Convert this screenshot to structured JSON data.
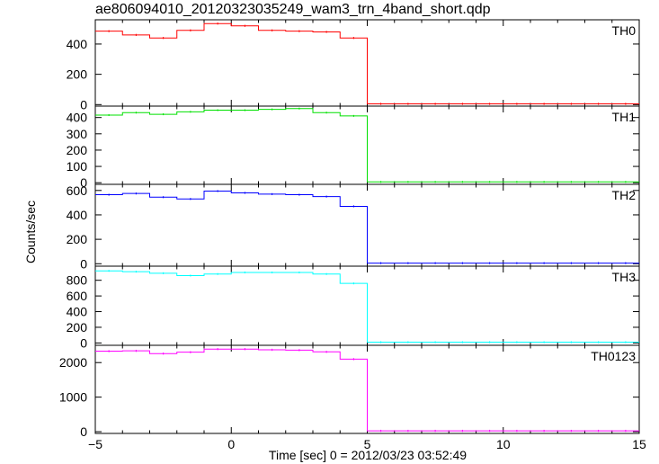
{
  "chart_data": {
    "type": "line",
    "title": "ae806094010_20120323035249_wam3_trn_4band_short.qdp",
    "xlabel": "Time [sec] 0 = 2012/03/23 03:52:49",
    "ylabel": "Counts/sec",
    "xlim": [
      -5,
      15
    ],
    "x_ticks": [
      "−5",
      "0",
      "5",
      "10",
      "15"
    ],
    "x_tick_values": [
      -5,
      0,
      5,
      10,
      15
    ],
    "panels": [
      {
        "name": "TH0",
        "color": "#ff0000",
        "ylim": [
          -10,
          560
        ],
        "y_ticks": [
          0,
          200,
          400
        ],
        "x": [
          -4.5,
          -3.5,
          -2.5,
          -1.5,
          -0.5,
          0.5,
          1.5,
          2.5,
          3.5,
          4.5,
          5.5,
          6.5,
          7.5,
          8.5,
          9.5,
          10.5,
          11.5,
          12.5,
          13.5,
          14.5
        ],
        "values": [
          485,
          460,
          440,
          490,
          535,
          520,
          490,
          485,
          480,
          440,
          5,
          5,
          5,
          5,
          5,
          5,
          5,
          5,
          5,
          5
        ]
      },
      {
        "name": "TH1",
        "color": "#00e000",
        "ylim": [
          -10,
          470
        ],
        "y_ticks": [
          0,
          100,
          200,
          300,
          400
        ],
        "x": [
          -4.5,
          -3.5,
          -2.5,
          -1.5,
          -0.5,
          0.5,
          1.5,
          2.5,
          3.5,
          4.5,
          5.5,
          6.5,
          7.5,
          8.5,
          9.5,
          10.5,
          11.5,
          12.5,
          13.5,
          14.5
        ],
        "values": [
          415,
          430,
          420,
          435,
          445,
          445,
          450,
          455,
          430,
          410,
          5,
          5,
          5,
          5,
          5,
          5,
          5,
          5,
          5,
          5
        ]
      },
      {
        "name": "TH2",
        "color": "#0000ff",
        "ylim": [
          -20,
          650
        ],
        "y_ticks": [
          0,
          200,
          400,
          600
        ],
        "x": [
          -4.5,
          -3.5,
          -2.5,
          -1.5,
          -0.5,
          0.5,
          1.5,
          2.5,
          3.5,
          4.5,
          5.5,
          6.5,
          7.5,
          8.5,
          9.5,
          10.5,
          11.5,
          12.5,
          13.5,
          14.5
        ],
        "values": [
          565,
          575,
          545,
          530,
          595,
          580,
          570,
          565,
          550,
          470,
          5,
          5,
          5,
          5,
          5,
          5,
          5,
          5,
          5,
          5
        ]
      },
      {
        "name": "TH3",
        "color": "#00ffff",
        "ylim": [
          -30,
          980
        ],
        "y_ticks": [
          0,
          200,
          400,
          600,
          800
        ],
        "x": [
          -4.5,
          -3.5,
          -2.5,
          -1.5,
          -0.5,
          0.5,
          1.5,
          2.5,
          3.5,
          4.5,
          5.5,
          6.5,
          7.5,
          8.5,
          9.5,
          10.5,
          11.5,
          12.5,
          13.5,
          14.5
        ],
        "values": [
          920,
          910,
          890,
          860,
          880,
          900,
          900,
          900,
          880,
          760,
          10,
          10,
          10,
          10,
          10,
          10,
          10,
          10,
          10,
          10
        ]
      },
      {
        "name": "TH0123",
        "color": "#ff00ff",
        "ylim": [
          -50,
          2500
        ],
        "y_ticks": [
          0,
          1000,
          2000
        ],
        "x": [
          -4.5,
          -3.5,
          -2.5,
          -1.5,
          -0.5,
          0.5,
          1.5,
          2.5,
          3.5,
          4.5,
          5.5,
          6.5,
          7.5,
          8.5,
          9.5,
          10.5,
          11.5,
          12.5,
          13.5,
          14.5
        ],
        "values": [
          2330,
          2340,
          2260,
          2300,
          2390,
          2390,
          2370,
          2360,
          2310,
          2100,
          25,
          25,
          25,
          25,
          25,
          25,
          25,
          25,
          25,
          25
        ]
      }
    ]
  }
}
